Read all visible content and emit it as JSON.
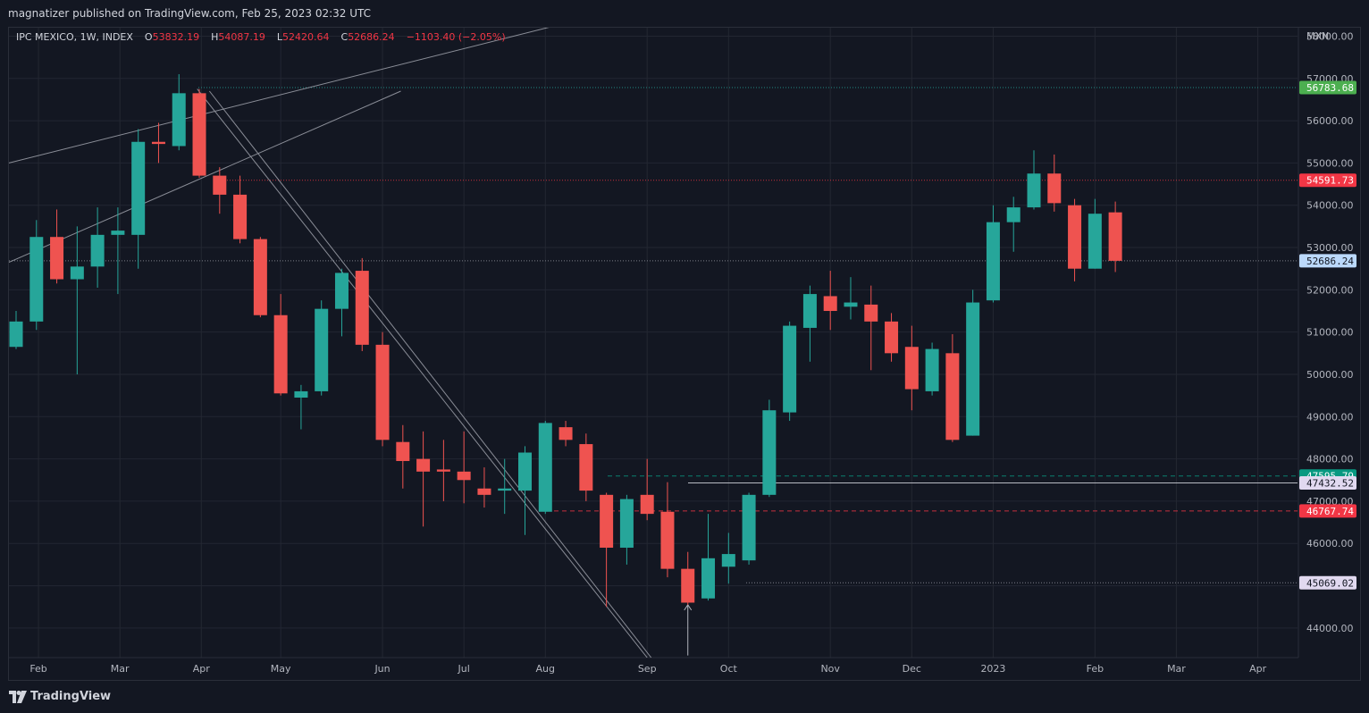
{
  "header": {
    "publisher": "magnatizer published on TradingView.com, Feb 25, 2023 02:32 UTC"
  },
  "legend": {
    "symbol": "IPC MEXICO, 1W, INDEX",
    "open_label": "O",
    "open": "53832.19",
    "high_label": "H",
    "high": "54087.19",
    "low_label": "L",
    "low": "52420.64",
    "close_label": "C",
    "close": "52686.24",
    "change": "−1103.40 (−2.05%)"
  },
  "footer": {
    "brand": "TradingView"
  },
  "colors": {
    "up": "#26a69a",
    "down": "#ef5350",
    "background": "#131722",
    "grid": "#232732",
    "text": "#b2b5be",
    "trendline": "#b2b5be"
  },
  "chart_data": {
    "type": "candlestick",
    "currency": "MXN",
    "ylim": [
      43300,
      58200
    ],
    "yticks": [
      "44000.00",
      "45000.00",
      "46000.00",
      "47000.00",
      "48000.00",
      "49000.00",
      "50000.00",
      "51000.00",
      "52000.00",
      "53000.00",
      "54000.00",
      "55000.00",
      "56000.00",
      "57000.00",
      "58000.00"
    ],
    "xticks": [
      {
        "label": "Feb",
        "idx": 1.1
      },
      {
        "label": "Mar",
        "idx": 5.1
      },
      {
        "label": "Apr",
        "idx": 9.1
      },
      {
        "label": "May",
        "idx": 13.0
      },
      {
        "label": "Jun",
        "idx": 18.0
      },
      {
        "label": "Jul",
        "idx": 22.0
      },
      {
        "label": "Aug",
        "idx": 26.0
      },
      {
        "label": "Sep",
        "idx": 31.0
      },
      {
        "label": "Oct",
        "idx": 35.0
      },
      {
        "label": "Nov",
        "idx": 40.0
      },
      {
        "label": "Dec",
        "idx": 44.0
      },
      {
        "label": "2023",
        "idx": 48.0
      },
      {
        "label": "Feb",
        "idx": 53.0
      },
      {
        "label": "Mar",
        "idx": 57.0
      },
      {
        "label": "Apr",
        "idx": 61.0
      }
    ],
    "candles": [
      {
        "o": 50650,
        "h": 51500,
        "l": 50600,
        "c": 51250
      },
      {
        "o": 51250,
        "h": 53650,
        "l": 51050,
        "c": 53250
      },
      {
        "o": 53250,
        "h": 53900,
        "l": 52150,
        "c": 52250
      },
      {
        "o": 52250,
        "h": 53500,
        "l": 50000,
        "c": 52550
      },
      {
        "o": 52550,
        "h": 53950,
        "l": 52050,
        "c": 53300
      },
      {
        "o": 53300,
        "h": 53950,
        "l": 51900,
        "c": 53400
      },
      {
        "o": 53300,
        "h": 55800,
        "l": 52500,
        "c": 55500
      },
      {
        "o": 55500,
        "h": 55950,
        "l": 55000,
        "c": 55450
      },
      {
        "o": 55400,
        "h": 57100,
        "l": 55300,
        "c": 56650
      },
      {
        "o": 56650,
        "h": 56750,
        "l": 54650,
        "c": 54700
      },
      {
        "o": 54700,
        "h": 54900,
        "l": 53800,
        "c": 54250
      },
      {
        "o": 54250,
        "h": 54700,
        "l": 53100,
        "c": 53200
      },
      {
        "o": 53200,
        "h": 53250,
        "l": 51350,
        "c": 51400
      },
      {
        "o": 51400,
        "h": 51900,
        "l": 49500,
        "c": 49550
      },
      {
        "o": 49450,
        "h": 49750,
        "l": 48700,
        "c": 49600
      },
      {
        "o": 49600,
        "h": 51750,
        "l": 49500,
        "c": 51550
      },
      {
        "o": 51550,
        "h": 52500,
        "l": 50900,
        "c": 52400
      },
      {
        "o": 52450,
        "h": 52750,
        "l": 50550,
        "c": 50700
      },
      {
        "o": 50700,
        "h": 51000,
        "l": 48300,
        "c": 48450
      },
      {
        "o": 48400,
        "h": 48800,
        "l": 47300,
        "c": 47950
      },
      {
        "o": 48000,
        "h": 48650,
        "l": 46400,
        "c": 47700
      },
      {
        "o": 47750,
        "h": 48450,
        "l": 47000,
        "c": 47700
      },
      {
        "o": 47700,
        "h": 48650,
        "l": 46950,
        "c": 47500
      },
      {
        "o": 47300,
        "h": 47800,
        "l": 46850,
        "c": 47150
      },
      {
        "o": 47250,
        "h": 48000,
        "l": 46700,
        "c": 47300
      },
      {
        "o": 47250,
        "h": 48300,
        "l": 46200,
        "c": 48150
      },
      {
        "o": 46750,
        "h": 48900,
        "l": 46700,
        "c": 48850
      },
      {
        "o": 48750,
        "h": 48900,
        "l": 48300,
        "c": 48450
      },
      {
        "o": 48350,
        "h": 48600,
        "l": 47000,
        "c": 47250
      },
      {
        "o": 47150,
        "h": 47200,
        "l": 44500,
        "c": 45900
      },
      {
        "o": 45900,
        "h": 47150,
        "l": 45500,
        "c": 47050
      },
      {
        "o": 47150,
        "h": 48000,
        "l": 46550,
        "c": 46700
      },
      {
        "o": 46750,
        "h": 47450,
        "l": 45200,
        "c": 45400
      },
      {
        "o": 45400,
        "h": 45800,
        "l": 44550,
        "c": 44600
      },
      {
        "o": 44700,
        "h": 46700,
        "l": 44650,
        "c": 45650
      },
      {
        "o": 45450,
        "h": 46250,
        "l": 45050,
        "c": 45750
      },
      {
        "o": 45600,
        "h": 47200,
        "l": 45500,
        "c": 47150
      },
      {
        "o": 47150,
        "h": 49400,
        "l": 47100,
        "c": 49150
      },
      {
        "o": 49100,
        "h": 51250,
        "l": 48900,
        "c": 51150
      },
      {
        "o": 51100,
        "h": 52100,
        "l": 50300,
        "c": 51900
      },
      {
        "o": 51850,
        "h": 52450,
        "l": 51050,
        "c": 51500
      },
      {
        "o": 51600,
        "h": 52300,
        "l": 51300,
        "c": 51700
      },
      {
        "o": 51650,
        "h": 52100,
        "l": 50100,
        "c": 51250
      },
      {
        "o": 51250,
        "h": 51450,
        "l": 50300,
        "c": 50500
      },
      {
        "o": 50650,
        "h": 51150,
        "l": 49150,
        "c": 49650
      },
      {
        "o": 49600,
        "h": 50750,
        "l": 49500,
        "c": 50600
      },
      {
        "o": 50500,
        "h": 50950,
        "l": 48400,
        "c": 48450
      },
      {
        "o": 48550,
        "h": 52000,
        "l": 48550,
        "c": 51700
      },
      {
        "o": 51750,
        "h": 54000,
        "l": 51700,
        "c": 53600
      },
      {
        "o": 53600,
        "h": 54200,
        "l": 52900,
        "c": 53950
      },
      {
        "o": 53950,
        "h": 55300,
        "l": 53900,
        "c": 54750
      },
      {
        "o": 54750,
        "h": 55200,
        "l": 53850,
        "c": 54050
      },
      {
        "o": 54000,
        "h": 54150,
        "l": 52200,
        "c": 52500
      },
      {
        "o": 52500,
        "h": 54150,
        "l": 52500,
        "c": 53800
      },
      {
        "o": 53832.19,
        "h": 54087.19,
        "l": 52420.64,
        "c": 52686.24
      }
    ],
    "levels": [
      {
        "price": 56783.68,
        "label": "56783.68",
        "color": "#26a69a",
        "style": "dotted",
        "tag": "#4caf50",
        "tagText": "#ffffff"
      },
      {
        "price": 54591.73,
        "label": "54591.73",
        "color": "#f23645",
        "style": "dotted",
        "tag": "#f23645",
        "tagText": "#ffffff"
      },
      {
        "price": 52686.24,
        "label": "52686.24",
        "color": "#9598a1",
        "style": "dotted",
        "tag": "#bbd9fb",
        "tagText": "#131722"
      },
      {
        "price": 47595.79,
        "label": "47595.79",
        "color": "#089981",
        "style": "dashed",
        "tag": "#089981",
        "tagText": "#ffffff"
      },
      {
        "price": 47432.52,
        "label": "47432.52",
        "color": "#e1e3eb",
        "style": "solid",
        "tag": "#e1d9f0",
        "tagText": "#131722"
      },
      {
        "price": 46767.74,
        "label": "46767.74",
        "color": "#f23645",
        "style": "dashed",
        "tag": "#f23645",
        "tagText": "#ffffff"
      },
      {
        "price": 45069.02,
        "label": "45069.02",
        "color": "#9598a1",
        "style": "dotted",
        "tag": "#e1d9f0",
        "tagText": "#131722"
      }
    ]
  }
}
